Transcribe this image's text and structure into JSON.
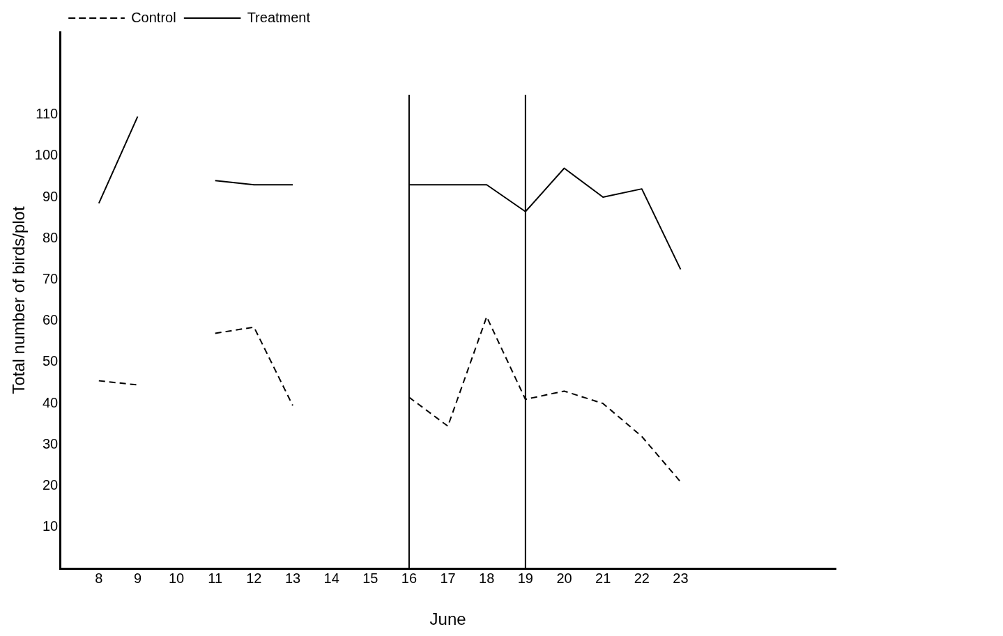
{
  "chart_data": {
    "type": "line",
    "xlabel": "June",
    "ylabel": "Total number of birds/plot",
    "x": [
      8,
      9,
      10,
      11,
      12,
      13,
      14,
      15,
      16,
      17,
      18,
      19,
      20,
      21,
      22,
      23
    ],
    "series": [
      {
        "name": "Control",
        "color": "#000000",
        "line_style": "dashed",
        "values": [
          45.5,
          44.5,
          null,
          57,
          58.5,
          39.5,
          null,
          null,
          41.5,
          34.5,
          61,
          41,
          43,
          40,
          32,
          21
        ]
      },
      {
        "name": "Treatment",
        "color": "#000000",
        "line_style": "solid",
        "values": [
          88.5,
          109.5,
          null,
          94,
          93,
          93,
          null,
          null,
          93,
          93,
          93,
          86.5,
          97,
          90,
          92,
          72.5
        ]
      }
    ],
    "xlim": [
      7,
      27
    ],
    "xticks": [
      8,
      9,
      10,
      11,
      12,
      13,
      14,
      15,
      16,
      17,
      18,
      19,
      20,
      21,
      22,
      23
    ],
    "ylim": [
      0,
      130
    ],
    "yticks": [
      10,
      20,
      30,
      40,
      50,
      60,
      70,
      80,
      90,
      100,
      110
    ],
    "ref_lines": [
      {
        "axis": "x",
        "value": 16,
        "color": "#000000"
      },
      {
        "axis": "x",
        "value": 19,
        "color": "#000000"
      }
    ],
    "grid": false,
    "legend": "top left",
    "marker": "none"
  }
}
